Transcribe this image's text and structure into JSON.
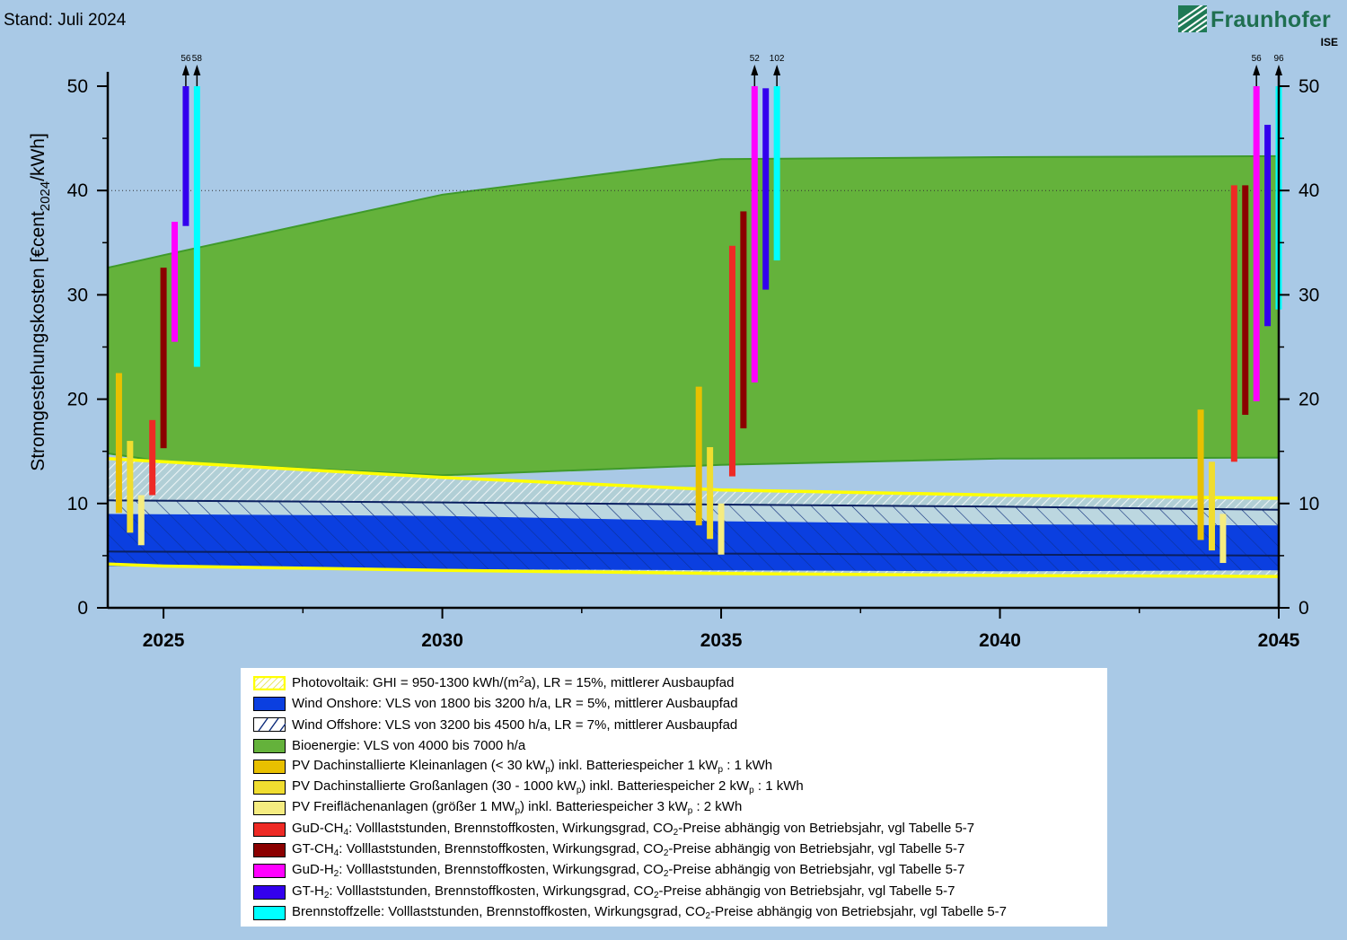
{
  "header": {
    "status_label": "Stand: Juli 2024"
  },
  "logo": {
    "name": "Fraunhofer",
    "sub": "ISE"
  },
  "chart_data": {
    "type": "area",
    "ylabel": "Stromgestehungskosten [€cent_2024/kWh]",
    "xlim": [
      2024.0,
      2045.0
    ],
    "ylim": [
      0,
      50
    ],
    "x_ticks": [
      2025,
      2030,
      2035,
      2040,
      2045
    ],
    "y_ticks": [
      0,
      10,
      20,
      30,
      40,
      50
    ],
    "gridline_y": 40,
    "colors": {
      "bio": "#64b23b",
      "pv": "#ffff00",
      "wind_on": "#0b3fe0",
      "wind_off": "#0b2a7a",
      "pv_small": "#e8c000",
      "pv_large": "#f0dd30",
      "pv_ground": "#f5ec80",
      "gud_ch4": "#ee2a25",
      "gt_ch4": "#8b0000",
      "gud_h2": "#ff00ff",
      "gt_h2": "#3300ee",
      "fc": "#00ffff"
    },
    "bands": [
      {
        "name": "Bioenergie",
        "x": [
          2024,
          2025,
          2030,
          2035,
          2040,
          2045
        ],
        "low": [
          14.8,
          14.0,
          12.7,
          13.7,
          14.3,
          14.4
        ],
        "high": [
          32.6,
          33.8,
          39.6,
          43.0,
          43.2,
          43.3
        ]
      },
      {
        "name": "Wind Onshore",
        "x": [
          2024,
          2030,
          2035,
          2040,
          2045
        ],
        "low": [
          4.0,
          3.7,
          3.6,
          3.5,
          3.6
        ],
        "high": [
          9.0,
          8.8,
          8.3,
          8.0,
          7.9
        ]
      },
      {
        "name": "Wind Offshore",
        "x": [
          2024,
          2030,
          2035,
          2040,
          2045
        ],
        "low": [
          5.4,
          5.3,
          5.2,
          5.1,
          5.0
        ],
        "high": [
          10.3,
          10.1,
          9.9,
          9.7,
          9.4
        ]
      },
      {
        "name": "Photovoltaik",
        "x": [
          2024,
          2025,
          2030,
          2035,
          2040,
          2045
        ],
        "low": [
          4.2,
          4.0,
          3.6,
          3.3,
          3.1,
          3.0
        ],
        "high": [
          14.3,
          14.0,
          12.5,
          11.3,
          10.8,
          10.5
        ]
      }
    ],
    "bars": [
      {
        "tech": "pv_small",
        "x": 2024.2,
        "low": 9.1,
        "high": 22.5
      },
      {
        "tech": "pv_large",
        "x": 2024.4,
        "low": 7.2,
        "high": 16.0
      },
      {
        "tech": "pv_ground",
        "x": 2024.6,
        "low": 6.0,
        "high": 10.8
      },
      {
        "tech": "gud_ch4",
        "x": 2024.8,
        "low": 10.8,
        "high": 18.0
      },
      {
        "tech": "gt_ch4",
        "x": 2025.0,
        "low": 15.3,
        "high": 32.6
      },
      {
        "tech": "gud_h2",
        "x": 2025.2,
        "low": 25.5,
        "high": 37.0
      },
      {
        "tech": "gt_h2",
        "x": 2025.4,
        "low": 36.6,
        "high": 50,
        "arrow": "56"
      },
      {
        "tech": "fc",
        "x": 2025.6,
        "low": 23.1,
        "high": 50,
        "arrow": "58"
      },
      {
        "tech": "pv_small",
        "x": 2034.6,
        "low": 7.9,
        "high": 21.2
      },
      {
        "tech": "pv_large",
        "x": 2034.8,
        "low": 6.6,
        "high": 15.4
      },
      {
        "tech": "pv_ground",
        "x": 2035.0,
        "low": 5.1,
        "high": 10.0
      },
      {
        "tech": "gud_ch4",
        "x": 2035.2,
        "low": 12.6,
        "high": 34.7
      },
      {
        "tech": "gt_ch4",
        "x": 2035.4,
        "low": 17.2,
        "high": 38.0
      },
      {
        "tech": "gud_h2",
        "x": 2035.6,
        "low": 21.6,
        "high": 50,
        "arrow": "52"
      },
      {
        "tech": "gt_h2",
        "x": 2035.8,
        "low": 30.5,
        "high": 49.8
      },
      {
        "tech": "fc",
        "x": 2036.0,
        "low": 33.3,
        "high": 50,
        "arrow": "102"
      },
      {
        "tech": "pv_small",
        "x": 2043.6,
        "low": 6.5,
        "high": 19.0
      },
      {
        "tech": "pv_large",
        "x": 2043.8,
        "low": 5.5,
        "high": 14.0
      },
      {
        "tech": "pv_ground",
        "x": 2044.0,
        "low": 4.3,
        "high": 9.0
      },
      {
        "tech": "gud_ch4",
        "x": 2044.2,
        "low": 14.0,
        "high": 40.5
      },
      {
        "tech": "gt_ch4",
        "x": 2044.4,
        "low": 18.5,
        "high": 40.5
      },
      {
        "tech": "gud_h2",
        "x": 2044.6,
        "low": 19.8,
        "high": 50,
        "arrow": "56"
      },
      {
        "tech": "gt_h2",
        "x": 2044.8,
        "low": 27.0,
        "high": 46.3
      },
      {
        "tech": "fc",
        "x": 2045.0,
        "low": 28.6,
        "high": 50,
        "arrow": "96"
      }
    ]
  },
  "legend": [
    {
      "key": "pv",
      "label": "Photovoltaik: GHI = 950-1300 kWh/(m²a), LR = 15%, mittlerer Ausbaupfad"
    },
    {
      "key": "wind_on",
      "label": "Wind Onshore: VLS von 1800 bis 3200 h/a, LR = 5%, mittlerer Ausbaupfad"
    },
    {
      "key": "wind_off",
      "label": "Wind Offshore: VLS von 3200 bis 4500 h/a, LR = 7%, mittlerer Ausbaupfad"
    },
    {
      "key": "bio",
      "label": "Bioenergie: VLS von 4000 bis 7000 h/a"
    },
    {
      "key": "pv_small",
      "label": "PV Dachinstallierte Kleinanlagen (< 30 kWp) inkl. Batteriespeicher 1 kWp : 1 kWh"
    },
    {
      "key": "pv_large",
      "label": "PV Dachinstallierte Großanlagen (30 - 1000 kWp) inkl. Batteriespeicher 2 kWp : 1 kWh"
    },
    {
      "key": "pv_ground",
      "label": "PV Freiflächenanlagen (größer 1 MWp) inkl. Batteriespeicher 3 kWp : 2 kWh"
    },
    {
      "key": "gud_ch4",
      "label": "GuD-CH4: Volllaststunden, Brennstoffkosten, Wirkungsgrad, CO2-Preise abhängig von Betriebsjahr, vgl Tabelle 5-7"
    },
    {
      "key": "gt_ch4",
      "label": "GT-CH4: Volllaststunden, Brennstoffkosten, Wirkungsgrad, CO2-Preise abhängig von Betriebsjahr, vgl Tabelle 5-7"
    },
    {
      "key": "gud_h2",
      "label": "GuD-H2: Volllaststunden, Brennstoffkosten, Wirkungsgrad, CO2-Preise abhängig von Betriebsjahr, vgl Tabelle 5-7"
    },
    {
      "key": "gt_h2",
      "label": "GT-H2: Volllaststunden, Brennstoffkosten, Wirkungsgrad, CO2-Preise abhängig von Betriebsjahr, vgl Tabelle 5-7"
    },
    {
      "key": "fc",
      "label": "Brennstoffzelle: Volllaststunden, Brennstoffkosten, Wirkungsgrad, CO2-Preise abhängig von Betriebsjahr, vgl Tabelle 5-7"
    }
  ]
}
